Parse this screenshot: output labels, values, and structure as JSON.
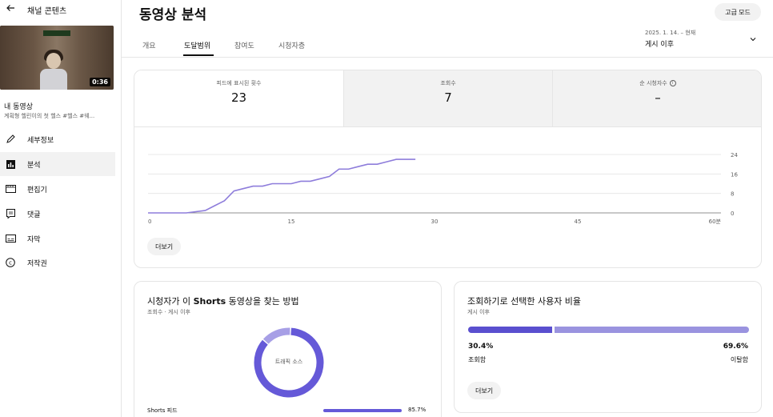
{
  "sidebar": {
    "back_label": "채널 콘텐츠",
    "video": {
      "duration": "0:36",
      "title": "내 동영상",
      "description": "계획형 헬린이의 첫 헬스 #헬스 #웨..."
    },
    "items": [
      {
        "label": "세부정보",
        "icon": "pencil-icon"
      },
      {
        "label": "분석",
        "icon": "analytics-icon",
        "active": true
      },
      {
        "label": "편집기",
        "icon": "film-icon"
      },
      {
        "label": "댓글",
        "icon": "comments-icon"
      },
      {
        "label": "자막",
        "icon": "subtitles-icon"
      },
      {
        "label": "저작권",
        "icon": "copyright-icon"
      }
    ]
  },
  "header": {
    "title": "동영상 분석",
    "advanced_label": "고급 모드",
    "tabs": [
      {
        "label": "개요"
      },
      {
        "label": "도달범위",
        "active": true
      },
      {
        "label": "참여도"
      },
      {
        "label": "시청자층"
      }
    ],
    "date_range": "2025. 1. 14. – 현재",
    "date_label": "게시 이후"
  },
  "metrics": [
    {
      "label": "피드에 표시된 횟수",
      "value": "23"
    },
    {
      "label": "조회수",
      "value": "7"
    },
    {
      "label": "순 시청자수",
      "value": "–"
    }
  ],
  "chart_data": {
    "type": "line",
    "x": [
      0,
      2,
      4,
      6,
      7,
      8,
      9,
      10,
      11,
      12,
      13,
      14,
      15,
      16,
      17,
      18,
      19,
      20,
      21,
      22,
      23,
      24,
      25,
      26,
      27,
      28
    ],
    "series": [
      {
        "values": [
          0,
          0,
          0,
          1,
          3,
          5,
          9,
          10,
          11,
          11,
          12,
          12,
          12,
          13,
          13,
          14,
          15,
          18,
          18,
          19,
          20,
          20,
          21,
          22,
          22,
          22
        ]
      }
    ],
    "x_ticks": [
      "0",
      "15",
      "30",
      "45",
      "60분"
    ],
    "x_tick_values": [
      0,
      15,
      30,
      45,
      60
    ],
    "y_ticks": [
      "0",
      "8",
      "16",
      "24"
    ],
    "y_tick_values": [
      0,
      8,
      16,
      24
    ],
    "xlim": [
      0,
      60
    ],
    "ylim": [
      0,
      24
    ],
    "grid": true,
    "color": "#8e7ddb"
  },
  "main_more_label": "더보기",
  "traffic": {
    "title_prefix": "시청자가 이 ",
    "title_bold": "Shorts",
    "title_suffix": " 동영상을 찾는 방법",
    "subtitle": "조회수 · 게시 이후",
    "donut_label": "트래픽 소스",
    "donut_values": [
      85.7,
      14.3
    ],
    "donut_colors": [
      "#6559d8",
      "#a79fe6"
    ],
    "row_label": "Shorts 피드",
    "row_pct": "85.7%",
    "row_value": 85.7
  },
  "ratio": {
    "title": "조회하기로 선택한 사용자 비율",
    "subtitle": "게시 이후",
    "left_pct": "30.4%",
    "right_pct": "69.6%",
    "left_label": "조회함",
    "right_label": "이탈함",
    "left_value": 30.4,
    "more_label": "더보기"
  },
  "colors": {
    "accent": "#6559d8",
    "accent_light": "#9a93df"
  }
}
